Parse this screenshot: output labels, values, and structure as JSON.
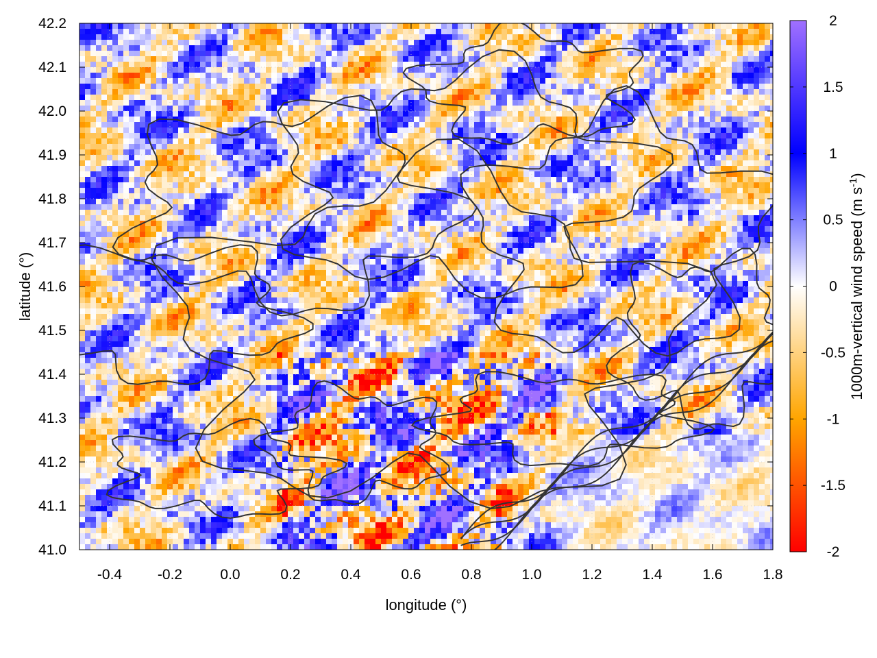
{
  "chart_data": {
    "type": "heatmap",
    "title": "",
    "xlabel": "longitude (°)",
    "ylabel": "latitude (°)",
    "colorbar_label": "1000m-vertical wind speed (m s",
    "colorbar_label_sup": "-1",
    "colorbar_label_suffix": ")",
    "xlim": [
      -0.5,
      1.8
    ],
    "ylim": [
      41.0,
      42.2
    ],
    "clim": [
      -2,
      2
    ],
    "x_ticks": [
      -0.4,
      -0.2,
      0.0,
      0.2,
      0.4,
      0.6,
      0.8,
      1.0,
      1.2,
      1.4,
      1.6,
      1.8
    ],
    "x_tick_labels": [
      "-0.4",
      "-0.2",
      "0.0",
      "0.2",
      "0.4",
      "0.6",
      "0.8",
      "1.0",
      "1.2",
      "1.4",
      "1.6",
      "1.8"
    ],
    "y_ticks": [
      41.0,
      41.1,
      41.2,
      41.3,
      41.4,
      41.5,
      41.6,
      41.7,
      41.8,
      41.9,
      42.0,
      42.1,
      42.2
    ],
    "y_tick_labels": [
      "41.0",
      "41.1",
      "41.2",
      "41.3",
      "41.4",
      "41.5",
      "41.6",
      "41.7",
      "41.8",
      "41.9",
      "42.0",
      "42.1",
      "42.2"
    ],
    "colorbar_ticks": [
      -2,
      -1.5,
      -1,
      -0.5,
      0,
      0.5,
      1,
      1.5,
      2
    ],
    "colorbar_tick_labels": [
      "-2",
      "-1.5",
      "-1",
      "-0.5",
      "0",
      "0.5",
      "1",
      "1.5",
      "2"
    ],
    "colormap": [
      {
        "value": -2,
        "color": "#ff0000"
      },
      {
        "value": -1,
        "color": "#ffa500"
      },
      {
        "value": 0,
        "color": "#ffffff"
      },
      {
        "value": 1,
        "color": "#0000ff"
      },
      {
        "value": 2,
        "color": "#a070ff"
      }
    ],
    "contour_color": "#333333",
    "grid": true
  }
}
